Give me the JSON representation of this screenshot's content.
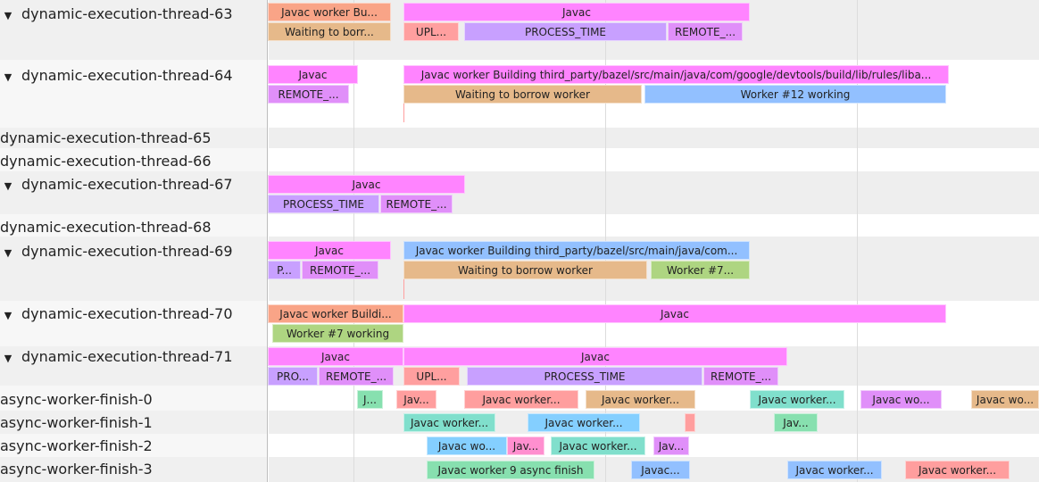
{
  "colors": {
    "javac": "#ff84ff",
    "worker_build": "#f9a487",
    "waiting": "#e6b98a",
    "upload": "#ff9f9f",
    "process_time": "#c8a0ff",
    "remote": "#e08ff9",
    "worker_blue": "#92c0ff",
    "worker_green": "#aed581",
    "teal": "#80dfcc",
    "green": "#87e0af",
    "light_blue": "#84cfff",
    "pink": "#ff8fcf",
    "salmon": "#ff9e9e"
  },
  "tracks": [
    {
      "name": "dynamic-execution-thread-63",
      "expanded": true,
      "toggle_icon": "triangle-down"
    },
    {
      "name": "dynamic-execution-thread-64",
      "expanded": true,
      "toggle_icon": "triangle-down"
    },
    {
      "name": "dynamic-execution-thread-65",
      "expanded": false
    },
    {
      "name": "dynamic-execution-thread-66",
      "expanded": false
    },
    {
      "name": "dynamic-execution-thread-67",
      "expanded": true,
      "toggle_icon": "triangle-down"
    },
    {
      "name": "dynamic-execution-thread-68",
      "expanded": false
    },
    {
      "name": "dynamic-execution-thread-69",
      "expanded": true,
      "toggle_icon": "triangle-down"
    },
    {
      "name": "dynamic-execution-thread-70",
      "expanded": true,
      "toggle_icon": "triangle-down"
    },
    {
      "name": "dynamic-execution-thread-71",
      "expanded": true,
      "toggle_icon": "triangle-down"
    },
    {
      "name": "async-worker-finish-0",
      "expanded": false
    },
    {
      "name": "async-worker-finish-1",
      "expanded": false
    },
    {
      "name": "async-worker-finish-2",
      "expanded": false
    },
    {
      "name": "async-worker-finish-3",
      "expanded": false
    }
  ],
  "toggle_glyph": "▼",
  "slices": [
    {
      "label": "Javac worker Bu...",
      "color": "worker_build"
    },
    {
      "label": "Waiting to borr...",
      "color": "waiting"
    },
    {
      "label": "Javac",
      "color": "javac"
    },
    {
      "label": "UPL...",
      "color": "upload"
    },
    {
      "label": "PROCESS_TIME",
      "color": "process_time"
    },
    {
      "label": "REMOTE_...",
      "color": "remote"
    },
    {
      "label": "Javac",
      "color": "javac"
    },
    {
      "label": "REMOTE_...",
      "color": "remote"
    },
    {
      "label": "Javac worker Building third_party/bazel/src/main/java/com/google/devtools/build/lib/rules/liba...",
      "color": "javac"
    },
    {
      "label": "Waiting to borrow worker",
      "color": "waiting"
    },
    {
      "label": "Worker #12 working",
      "color": "worker_blue"
    },
    {
      "label": "Javac",
      "color": "javac"
    },
    {
      "label": "PROCESS_TIME",
      "color": "process_time"
    },
    {
      "label": "REMOTE_...",
      "color": "remote"
    },
    {
      "label": "Javac",
      "color": "javac"
    },
    {
      "label": "P...",
      "color": "process_time"
    },
    {
      "label": "REMOTE_...",
      "color": "remote"
    },
    {
      "label": "Javac worker Building third_party/bazel/src/main/java/com...",
      "color": "worker_blue"
    },
    {
      "label": "Waiting to borrow worker",
      "color": "waiting"
    },
    {
      "label": "Worker #7...",
      "color": "worker_green"
    },
    {
      "label": "Javac worker Buildi...",
      "color": "worker_build"
    },
    {
      "label": "Javac",
      "color": "javac"
    },
    {
      "label": "Worker #7 working",
      "color": "worker_green"
    },
    {
      "label": "Javac",
      "color": "javac"
    },
    {
      "label": "PRO...",
      "color": "process_time"
    },
    {
      "label": "REMOTE_...",
      "color": "remote"
    },
    {
      "label": "Javac",
      "color": "javac"
    },
    {
      "label": "UPL...",
      "color": "upload"
    },
    {
      "label": "PROCESS_TIME",
      "color": "process_time"
    },
    {
      "label": "REMOTE_...",
      "color": "remote"
    },
    {
      "label": "J...",
      "color": "green"
    },
    {
      "label": "Jav...",
      "color": "salmon"
    },
    {
      "label": "Javac worker...",
      "color": "salmon"
    },
    {
      "label": "Javac worker...",
      "color": "waiting"
    },
    {
      "label": "Javac worker...",
      "color": "teal"
    },
    {
      "label": "Javac wo...",
      "color": "remote"
    },
    {
      "label": "Javac wo...",
      "color": "waiting"
    },
    {
      "label": "Javac worker...",
      "color": "teal"
    },
    {
      "label": "Javac worker...",
      "color": "light_blue"
    },
    {
      "label": "",
      "color": "salmon"
    },
    {
      "label": "Jav...",
      "color": "green"
    },
    {
      "label": "Javac wo...",
      "color": "light_blue"
    },
    {
      "label": "Jav...",
      "color": "pink"
    },
    {
      "label": "Javac worker...",
      "color": "teal"
    },
    {
      "label": "Jav...",
      "color": "remote"
    },
    {
      "label": "Javac worker 9 async finish",
      "color": "green"
    },
    {
      "label": "Javac...",
      "color": "worker_blue"
    },
    {
      "label": "Javac worker...",
      "color": "worker_blue"
    },
    {
      "label": "Javac worker...",
      "color": "salmon"
    }
  ]
}
